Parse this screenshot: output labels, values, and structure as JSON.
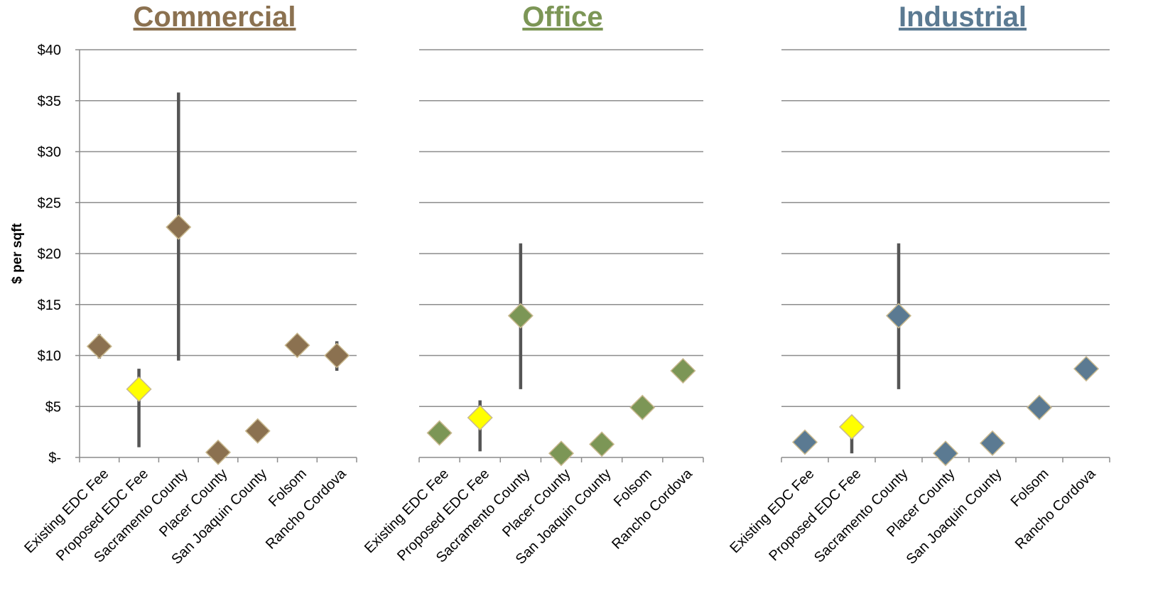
{
  "y_axis_label": "$ per sqft",
  "y_tick_labels": [
    "$-",
    "$5",
    "$10",
    "$15",
    "$20",
    "$25",
    "$30",
    "$35",
    "$40"
  ],
  "chart_data": [
    {
      "type": "scatter",
      "title": "Commercial",
      "title_color": "#8b7150",
      "marker_color": "#8b7150",
      "highlight_color": "#ffff00",
      "highlight_category": "Proposed EDC Fee",
      "ylabel": "$ per sqft",
      "ylim": [
        0,
        40
      ],
      "y_ticks": [
        0,
        5,
        10,
        15,
        20,
        25,
        30,
        35,
        40
      ],
      "grid": true,
      "categories": [
        "Existing EDC Fee",
        "Proposed EDC Fee",
        "Sacramento County",
        "Placer County",
        "San Joaquin County",
        "Folsom",
        "Rancho Cordova"
      ],
      "values": [
        10.9,
        6.7,
        22.6,
        0.5,
        2.6,
        11.0,
        10.0
      ],
      "range_low": [
        9.7,
        1.0,
        9.5,
        null,
        null,
        null,
        8.5
      ],
      "range_high": [
        12.1,
        8.7,
        35.8,
        null,
        null,
        null,
        11.4
      ]
    },
    {
      "type": "scatter",
      "title": "Office",
      "title_color": "#7c9656",
      "marker_color": "#7c9656",
      "highlight_color": "#ffff00",
      "highlight_category": "Proposed EDC Fee",
      "ylim": [
        0,
        40
      ],
      "y_ticks": [
        0,
        5,
        10,
        15,
        20,
        25,
        30,
        35,
        40
      ],
      "grid": true,
      "categories": [
        "Existing EDC Fee",
        "Proposed EDC Fee",
        "Sacramento County",
        "Placer County",
        "San Joaquin County",
        "Folsom",
        "Rancho Cordova"
      ],
      "values": [
        2.4,
        3.9,
        13.9,
        0.4,
        1.3,
        4.9,
        8.5
      ],
      "range_low": [
        null,
        0.6,
        6.7,
        null,
        null,
        null,
        null
      ],
      "range_high": [
        null,
        5.6,
        21.0,
        null,
        null,
        null,
        null
      ]
    },
    {
      "type": "scatter",
      "title": "Industrial",
      "title_color": "#5b7a92",
      "marker_color": "#5b7a92",
      "highlight_color": "#ffff00",
      "highlight_category": "Proposed EDC Fee",
      "ylim": [
        0,
        40
      ],
      "y_ticks": [
        0,
        5,
        10,
        15,
        20,
        25,
        30,
        35,
        40
      ],
      "grid": true,
      "categories": [
        "Existing EDC Fee",
        "Proposed EDC Fee",
        "Sacramento County",
        "Placer County",
        "San Joaquin County",
        "Folsom",
        "Rancho Cordova"
      ],
      "values": [
        1.5,
        3.0,
        13.9,
        0.4,
        1.4,
        4.9,
        8.7
      ],
      "range_low": [
        null,
        0.4,
        6.7,
        null,
        null,
        null,
        null
      ],
      "range_high": [
        null,
        3.6,
        21.0,
        null,
        null,
        null,
        null
      ]
    }
  ],
  "colors": {
    "gridline": "#8c8c8c",
    "range_bar": "#555555",
    "marker_stroke": "#c9b98f",
    "text": "#000000"
  }
}
